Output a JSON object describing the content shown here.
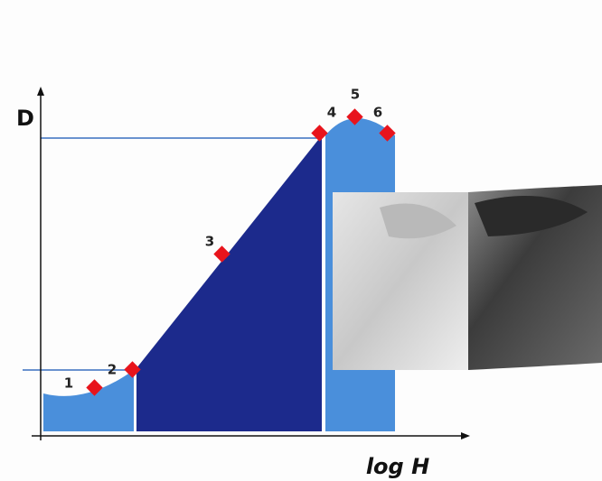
{
  "axes": {
    "y_label": "D",
    "x_label": "log H"
  },
  "points": [
    {
      "label": "1"
    },
    {
      "label": "2"
    },
    {
      "label": "3"
    },
    {
      "label": "4"
    },
    {
      "label": "5"
    },
    {
      "label": "6"
    }
  ]
}
